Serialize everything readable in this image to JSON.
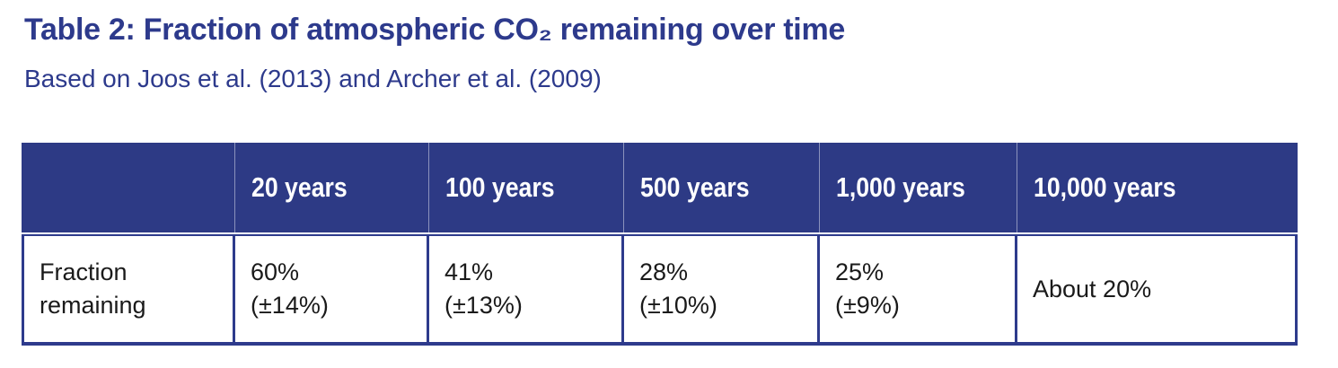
{
  "page": {
    "title": "Table 2: Fraction of atmospheric CO₂ remaining over time",
    "subtitle": "Based on Joos et al. (2013) and Archer et al. (2009)"
  },
  "table": {
    "columns": [
      "",
      "20 years",
      "100 years",
      "500 years",
      "1,000 years",
      "10,000 years"
    ],
    "row_label": "Fraction remaining",
    "cells": [
      {
        "value": "60%",
        "uncertainty": "(±14%)"
      },
      {
        "value": "41%",
        "uncertainty": "(±13%)"
      },
      {
        "value": "28%",
        "uncertainty": "(±10%)"
      },
      {
        "value": "25%",
        "uncertainty": "(±9%)"
      },
      {
        "value": "About 20%",
        "uncertainty": ""
      }
    ]
  },
  "colors": {
    "brand_blue": "#2D3A8C",
    "header_background": "#2D3A85",
    "table_border": "#2E3B8C",
    "header_text": "#FFFFFF",
    "body_text": "#1A1A1A",
    "page_background": "#FFFFFF"
  }
}
